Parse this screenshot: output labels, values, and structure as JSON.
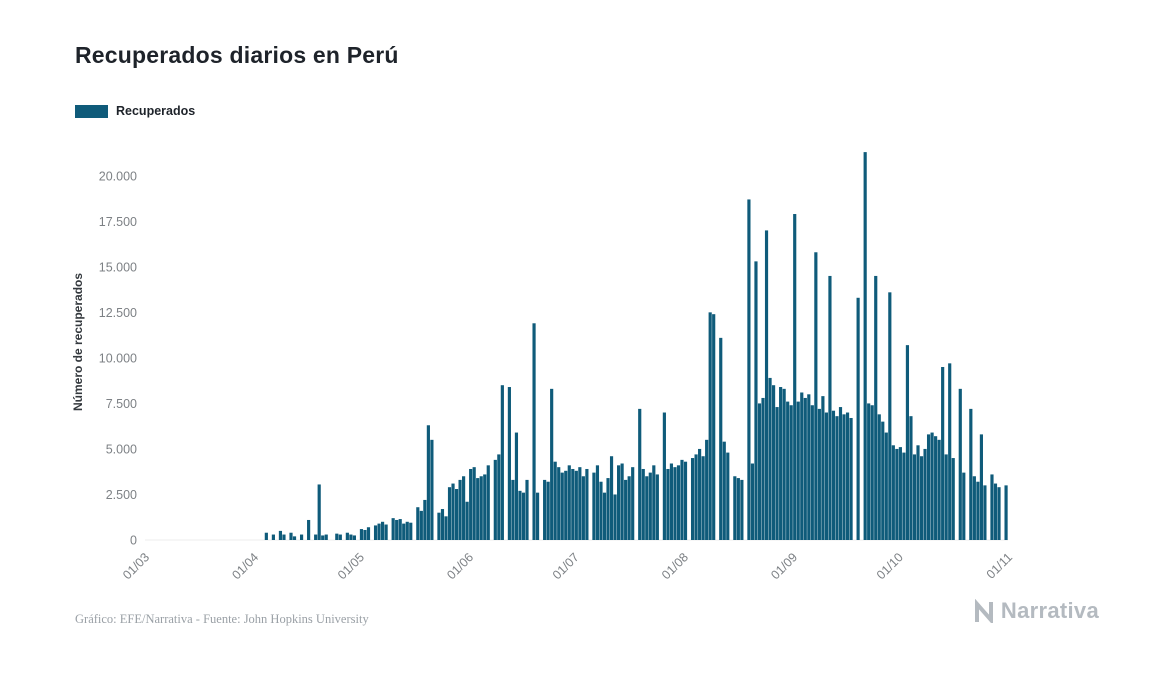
{
  "footer": {
    "caption": "Gráfico: EFE/Narrativa - Fuente: John Hopkins University"
  },
  "brand": {
    "name": "Narrativa"
  },
  "chart_data": {
    "type": "bar",
    "title": "Recuperados diarios en Perú",
    "xlabel": "",
    "ylabel": "Número de recuperados",
    "legend": "Recuperados",
    "legend_position": "top-left",
    "grid": false,
    "bar_color": "#0f5b7a",
    "ylim": [
      0,
      21800
    ],
    "x_unit": "day",
    "yticks": [
      {
        "label": "0",
        "value": 0
      },
      {
        "label": "2.500",
        "value": 2500
      },
      {
        "label": "5.000",
        "value": 5000
      },
      {
        "label": "7.500",
        "value": 7500
      },
      {
        "label": "10.000",
        "value": 10000
      },
      {
        "label": "12.500",
        "value": 12500
      },
      {
        "label": "15.000",
        "value": 15000
      },
      {
        "label": "17.500",
        "value": 17500
      },
      {
        "label": "20.000",
        "value": 20000
      }
    ],
    "xticks": [
      {
        "label": "01/03",
        "index": 0
      },
      {
        "label": "01/04",
        "index": 31
      },
      {
        "label": "01/05",
        "index": 61
      },
      {
        "label": "01/06",
        "index": 92
      },
      {
        "label": "01/07",
        "index": 122
      },
      {
        "label": "01/08",
        "index": 153
      },
      {
        "label": "01/09",
        "index": 184
      },
      {
        "label": "01/10",
        "index": 214
      },
      {
        "label": "01/11",
        "index": 245
      }
    ],
    "values": [
      0,
      0,
      0,
      0,
      0,
      0,
      0,
      0,
      0,
      0,
      0,
      0,
      0,
      0,
      0,
      0,
      0,
      0,
      0,
      0,
      0,
      0,
      0,
      0,
      0,
      0,
      0,
      0,
      0,
      0,
      0,
      0,
      0,
      0,
      400,
      0,
      300,
      0,
      500,
      300,
      0,
      400,
      200,
      0,
      300,
      0,
      1100,
      0,
      300,
      3050,
      250,
      300,
      0,
      0,
      350,
      300,
      0,
      400,
      300,
      250,
      0,
      600,
      550,
      700,
      0,
      800,
      900,
      1000,
      850,
      0,
      1200,
      1100,
      1150,
      900,
      1000,
      950,
      0,
      1800,
      1600,
      2200,
      6300,
      5500,
      0,
      1500,
      1700,
      1300,
      2900,
      3100,
      2800,
      3300,
      3500,
      2100,
      3900,
      4000,
      3400,
      3500,
      3600,
      4100,
      0,
      4400,
      4700,
      8500,
      0,
      8400,
      3300,
      5900,
      2700,
      2600,
      3300,
      0,
      11900,
      2600,
      0,
      3300,
      3200,
      8300,
      4300,
      4000,
      3700,
      3800,
      4100,
      3900,
      3800,
      4000,
      3500,
      3900,
      0,
      3700,
      4100,
      3200,
      2600,
      3400,
      4600,
      2500,
      4100,
      4200,
      3300,
      3500,
      4000,
      0,
      7200,
      3900,
      3500,
      3700,
      4100,
      3600,
      0,
      7000,
      3900,
      4200,
      4000,
      4100,
      4400,
      4300,
      0,
      4500,
      4700,
      5000,
      4600,
      5500,
      12500,
      12400,
      0,
      11100,
      5400,
      4800,
      0,
      3500,
      3400,
      3300,
      0,
      18700,
      4200,
      15300,
      7500,
      7800,
      17000,
      8900,
      8500,
      7300,
      8400,
      8300,
      7600,
      7400,
      17900,
      7600,
      8100,
      7800,
      8000,
      7400,
      15800,
      7200,
      7900,
      7000,
      14500,
      7100,
      6800,
      7300,
      6900,
      7000,
      6700,
      0,
      13300,
      0,
      21300,
      7500,
      7400,
      14500,
      6900,
      6500,
      5900,
      13600,
      5200,
      5000,
      5100,
      4800,
      10700,
      6800,
      4700,
      5200,
      4600,
      5000,
      5800,
      5900,
      5700,
      5500,
      9500,
      4700,
      9700,
      4500,
      0,
      8300,
      3700,
      0,
      7200,
      3500,
      3200,
      5800,
      3000,
      0,
      3600,
      3100,
      2900,
      0,
      3000
    ]
  }
}
